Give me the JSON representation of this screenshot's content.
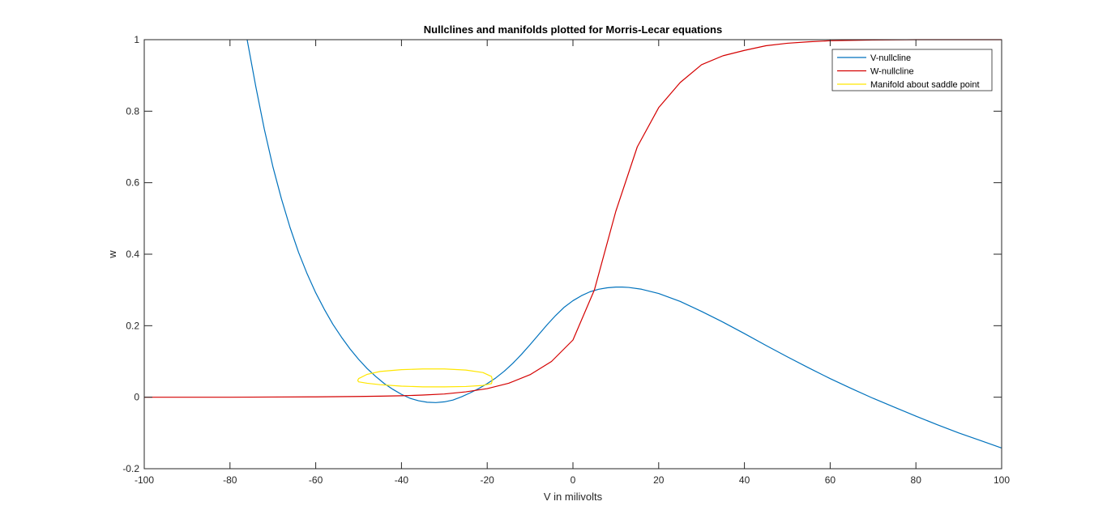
{
  "chart_data": {
    "type": "line",
    "title": "Nullclines and manifolds plotted for Morris-Lecar equations",
    "xlabel": "V in milivolts",
    "ylabel": "w",
    "xlim": [
      -100,
      100
    ],
    "ylim": [
      -0.2,
      1
    ],
    "xticks": [
      "-100",
      "-80",
      "-60",
      "-40",
      "-20",
      "0",
      "20",
      "40",
      "60",
      "80",
      "100"
    ],
    "yticks": [
      "-0.2",
      "0",
      "0.2",
      "0.4",
      "0.6",
      "0.8",
      "1"
    ],
    "grid": false,
    "legend_position": "top-right",
    "series": [
      {
        "name": "V-nullcline",
        "color": "#0072BD",
        "x": [
          -76,
          -74,
          -72,
          -70,
          -68,
          -66,
          -64,
          -62,
          -60,
          -58,
          -56,
          -54,
          -52,
          -50,
          -48,
          -46,
          -44,
          -42,
          -40,
          -38,
          -36,
          -34,
          -32,
          -30,
          -28,
          -26,
          -24,
          -22,
          -20,
          -18,
          -16,
          -14,
          -12,
          -10,
          -8,
          -6,
          -4,
          -2,
          0,
          2,
          4,
          6,
          8,
          10,
          11.5,
          13,
          16,
          20,
          25,
          30,
          35,
          40,
          45,
          50,
          55,
          60,
          65,
          70,
          75,
          80,
          85,
          90,
          95,
          100
        ],
        "y": [
          1.0,
          0.87,
          0.75,
          0.645,
          0.555,
          0.475,
          0.405,
          0.345,
          0.292,
          0.246,
          0.204,
          0.168,
          0.135,
          0.106,
          0.08,
          0.058,
          0.038,
          0.022,
          0.008,
          -0.003,
          -0.01,
          -0.014,
          -0.015,
          -0.013,
          -0.008,
          0.001,
          0.012,
          0.024,
          0.038,
          0.054,
          0.073,
          0.095,
          0.12,
          0.147,
          0.175,
          0.203,
          0.229,
          0.252,
          0.27,
          0.284,
          0.295,
          0.302,
          0.306,
          0.308,
          0.308,
          0.307,
          0.302,
          0.29,
          0.268,
          0.24,
          0.21,
          0.178,
          0.145,
          0.113,
          0.082,
          0.052,
          0.024,
          -0.003,
          -0.028,
          -0.053,
          -0.077,
          -0.1,
          -0.121,
          -0.142
        ]
      },
      {
        "name": "W-nullcline",
        "color": "#D40000",
        "x": [
          -100,
          -90,
          -80,
          -70,
          -60,
          -50,
          -45,
          -40,
          -35,
          -30,
          -25,
          -20,
          -15,
          -10,
          -5,
          0,
          5,
          10,
          15,
          20,
          25,
          30,
          35,
          40,
          45,
          50,
          55,
          60,
          70,
          80,
          90,
          100
        ],
        "y": [
          0.0,
          0.0,
          0.0,
          0.0005,
          0.001,
          0.002,
          0.003,
          0.004,
          0.006,
          0.009,
          0.015,
          0.024,
          0.039,
          0.063,
          0.1,
          0.16,
          0.3,
          0.52,
          0.7,
          0.81,
          0.88,
          0.93,
          0.955,
          0.97,
          0.983,
          0.99,
          0.994,
          0.997,
          0.999,
          1.0,
          1.0,
          1.0
        ]
      },
      {
        "name": "Manifold about saddle point",
        "color": "#FFE600",
        "closed": true,
        "x": [
          -50,
          -48,
          -45,
          -40,
          -35,
          -30,
          -25,
          -21,
          -19,
          -18.8,
          -19,
          -21,
          -25,
          -30,
          -35,
          -40,
          -45,
          -48,
          -50,
          -50.2
        ],
        "y": [
          0.052,
          0.064,
          0.072,
          0.077,
          0.079,
          0.079,
          0.076,
          0.069,
          0.058,
          0.048,
          0.038,
          0.033,
          0.03,
          0.029,
          0.029,
          0.031,
          0.035,
          0.039,
          0.043,
          0.047
        ]
      }
    ]
  }
}
